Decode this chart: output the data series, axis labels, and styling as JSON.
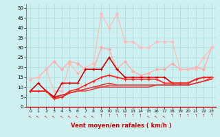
{
  "xlabel": "Vent moyen/en rafales ( km/h )",
  "background_color": "#cff0f0",
  "grid_color": "#aadddd",
  "x_ticks": [
    0,
    1,
    2,
    3,
    4,
    5,
    6,
    7,
    8,
    9,
    10,
    11,
    12,
    13,
    14,
    15,
    16,
    17,
    18,
    19,
    20,
    21,
    22,
    23
  ],
  "ylim": [
    0,
    52
  ],
  "yticks": [
    0,
    5,
    10,
    15,
    20,
    25,
    30,
    35,
    40,
    45,
    50
  ],
  "series": [
    {
      "x": [
        0,
        1,
        2,
        3,
        4,
        5,
        6,
        7,
        8,
        9,
        10,
        11,
        12,
        13,
        14,
        15,
        16,
        17,
        18,
        19,
        20,
        21,
        22,
        23
      ],
      "y": [
        14,
        15,
        19,
        23,
        19,
        23,
        22,
        19,
        19,
        30,
        29,
        19,
        23,
        18,
        16,
        17,
        19,
        19,
        22,
        19,
        19,
        20,
        19,
        30
      ],
      "color": "#ffaaaa",
      "linewidth": 0.9,
      "marker": "D",
      "markersize": 2.0,
      "zorder": 2
    },
    {
      "x": [
        0,
        1,
        2,
        3,
        4,
        5,
        6,
        7,
        8,
        9,
        10,
        11,
        12,
        13,
        14,
        15,
        16,
        17,
        18,
        19,
        20,
        21,
        22,
        23
      ],
      "y": [
        14,
        15,
        19,
        8,
        8,
        22,
        17,
        20,
        22,
        47,
        40,
        47,
        33,
        33,
        30,
        30,
        33,
        33,
        33,
        19,
        19,
        19,
        25,
        30
      ],
      "color": "#ffbbbb",
      "linewidth": 0.9,
      "marker": "D",
      "markersize": 2.0,
      "zorder": 2
    },
    {
      "x": [
        0,
        1,
        2,
        3,
        4,
        5,
        6,
        7,
        8,
        9,
        10,
        11,
        12,
        13,
        14,
        15,
        16,
        17,
        18,
        19,
        20,
        21,
        22,
        23
      ],
      "y": [
        8,
        12,
        8,
        5,
        12,
        12,
        12,
        19,
        19,
        19,
        25,
        19,
        15,
        15,
        15,
        15,
        15,
        15,
        12,
        12,
        12,
        14,
        15,
        15
      ],
      "color": "#cc0000",
      "linewidth": 1.2,
      "marker": "+",
      "markersize": 3.5,
      "zorder": 4
    },
    {
      "x": [
        0,
        1,
        2,
        3,
        4,
        5,
        6,
        7,
        8,
        9,
        10,
        11,
        12,
        13,
        14,
        15,
        16,
        17,
        18,
        19,
        20,
        21,
        22,
        23
      ],
      "y": [
        8,
        8,
        8,
        4,
        5,
        8,
        9,
        11,
        13,
        15,
        16,
        15,
        14,
        14,
        14,
        14,
        14,
        12,
        12,
        12,
        12,
        14,
        15,
        15
      ],
      "color": "#ff2222",
      "linewidth": 1.2,
      "marker": "+",
      "markersize": 3.5,
      "zorder": 4
    },
    {
      "x": [
        0,
        1,
        2,
        3,
        4,
        5,
        6,
        7,
        8,
        9,
        10,
        11,
        12,
        13,
        14,
        15,
        16,
        17,
        18,
        19,
        20,
        21,
        22,
        23
      ],
      "y": [
        8,
        8,
        8,
        5,
        5,
        7,
        8,
        9,
        10,
        11,
        12,
        11,
        11,
        11,
        11,
        11,
        11,
        11,
        11,
        11,
        11,
        12,
        13,
        14
      ],
      "color": "#cc2222",
      "linewidth": 1.0,
      "marker": null,
      "markersize": 0,
      "zorder": 3
    },
    {
      "x": [
        0,
        1,
        2,
        3,
        4,
        5,
        6,
        7,
        8,
        9,
        10,
        11,
        12,
        13,
        14,
        15,
        16,
        17,
        18,
        19,
        20,
        21,
        22,
        23
      ],
      "y": [
        8,
        8,
        8,
        5,
        6,
        7,
        8,
        9,
        10,
        10,
        11,
        11,
        11,
        11,
        11,
        11,
        11,
        11,
        11,
        11,
        11,
        12,
        13,
        15
      ],
      "color": "#ee4444",
      "linewidth": 1.0,
      "marker": null,
      "markersize": 0,
      "zorder": 3
    },
    {
      "x": [
        0,
        1,
        2,
        3,
        4,
        5,
        6,
        7,
        8,
        9,
        10,
        11,
        12,
        13,
        14,
        15,
        16,
        17,
        18,
        19,
        20,
        21,
        22,
        23
      ],
      "y": [
        8,
        8,
        8,
        5,
        6,
        7,
        8,
        8,
        9,
        10,
        10,
        10,
        10,
        10,
        10,
        10,
        11,
        11,
        11,
        11,
        11,
        12,
        13,
        14
      ],
      "color": "#dd3333",
      "linewidth": 1.0,
      "marker": null,
      "markersize": 0,
      "zorder": 3
    }
  ],
  "wind_angles": [
    225,
    225,
    225,
    225,
    225,
    225,
    225,
    225,
    225,
    270,
    270,
    270,
    270,
    270,
    270,
    225,
    225,
    225,
    270,
    270,
    270,
    270,
    270,
    270
  ],
  "wind_icon_color": "#cc0000"
}
